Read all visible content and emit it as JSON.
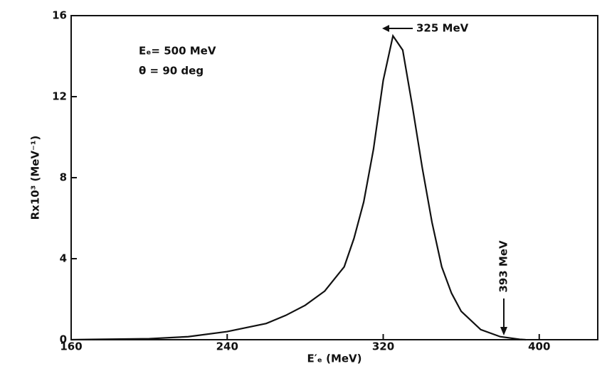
{
  "chart_data": {
    "type": "line",
    "x_label": "E′ₑ (MeV)",
    "y_label": "Rx10³ (MeV⁻¹)",
    "annotations": [
      "Eₑ= 500 MeV",
      "θ = 90 deg",
      "325 MeV",
      "393 MeV"
    ],
    "x": [
      160,
      200,
      220,
      240,
      260,
      270,
      280,
      290,
      300,
      305,
      310,
      315,
      320,
      325,
      330,
      335,
      340,
      345,
      350,
      355,
      360,
      370,
      380,
      390,
      393
    ],
    "series": [
      {
        "color": "#111111",
        "values": [
          0,
          0.05,
          0.15,
          0.4,
          0.8,
          1.2,
          1.7,
          2.4,
          3.6,
          5.0,
          6.8,
          9.4,
          12.8,
          15,
          14.3,
          11.5,
          8.5,
          5.8,
          3.6,
          2.3,
          1.4,
          0.5,
          0.15,
          0.02,
          0
        ]
      }
    ],
    "xlim": [
      160,
      430
    ],
    "ylim": [
      0,
      16
    ],
    "xticks": [
      160,
      240,
      320,
      400
    ],
    "yticks": [
      0,
      4,
      8,
      12,
      16
    ],
    "grid": false
  }
}
